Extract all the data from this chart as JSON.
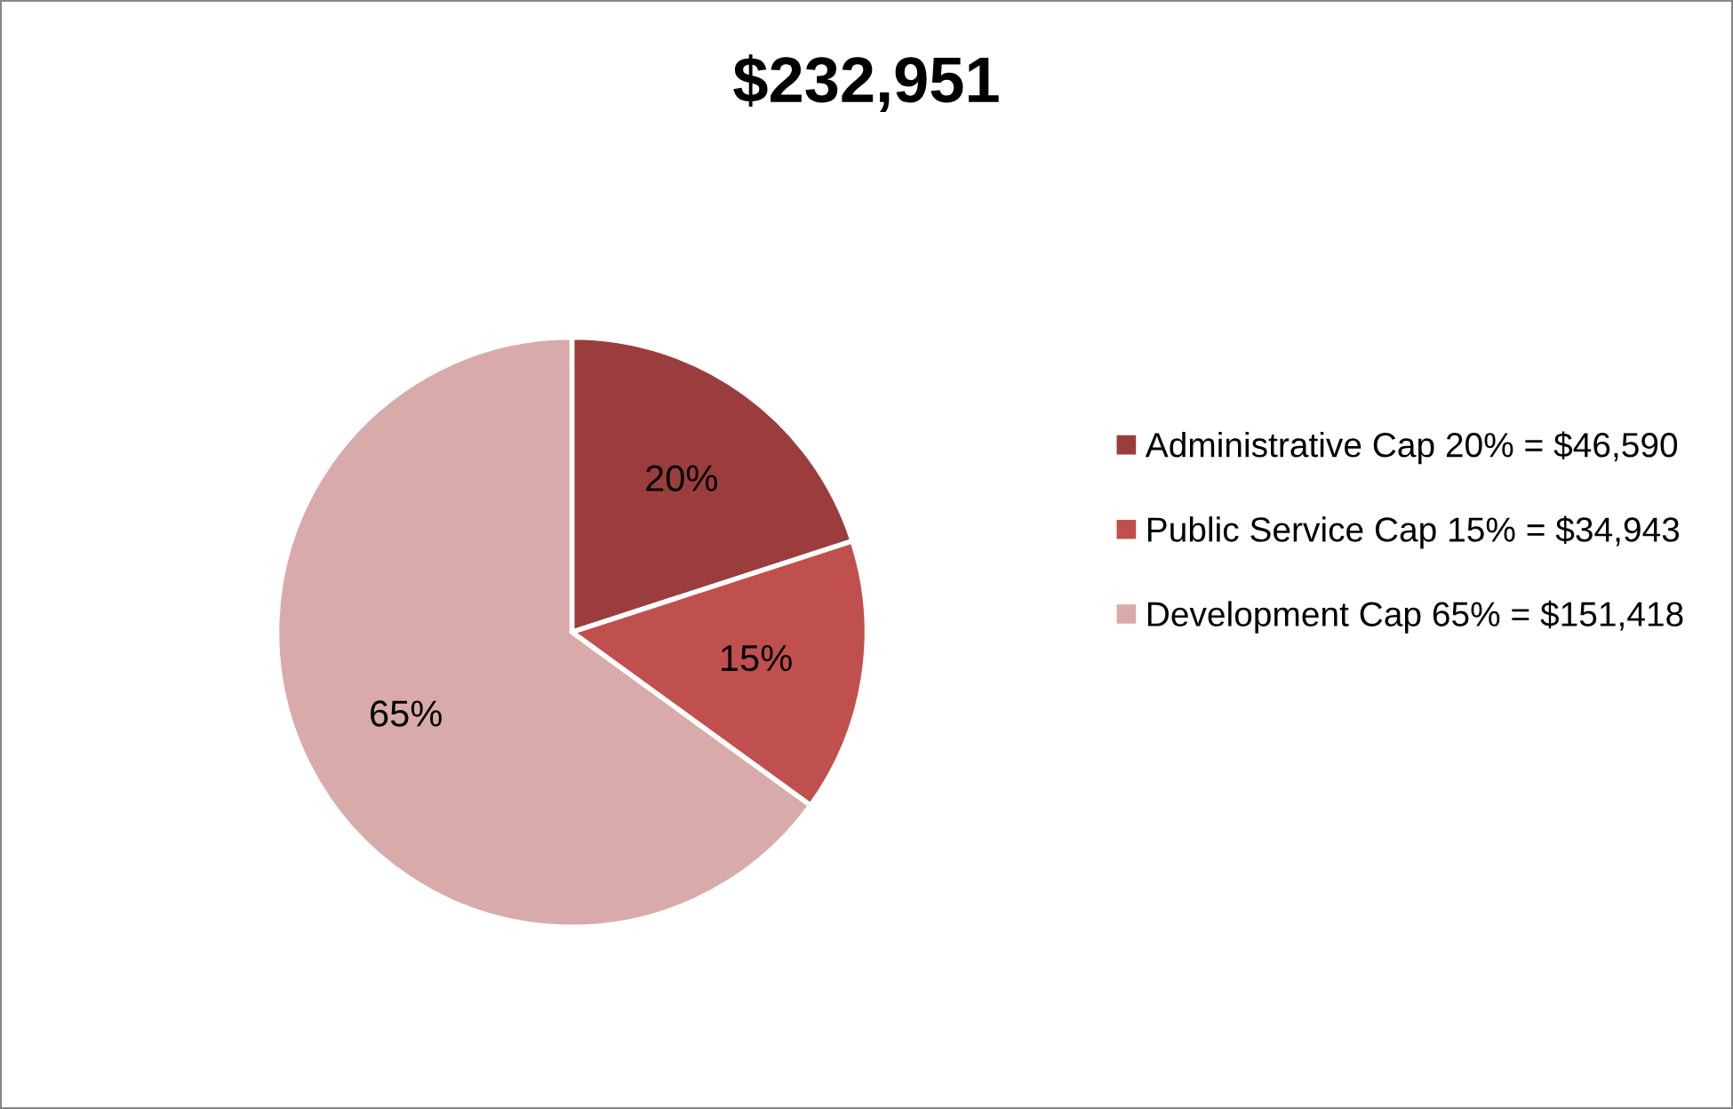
{
  "chart_data": {
    "type": "pie",
    "title": "$232,951",
    "categories": [
      "Administrative Cap 20% = $46,590",
      "Public Service Cap 15% = $34,943",
      "Development Cap 65% = $151,418"
    ],
    "values": [
      20,
      15,
      65
    ],
    "value_labels": [
      "20%",
      "15%",
      "65%"
    ],
    "colors": [
      "#9c3d3d",
      "#c0504d",
      "#d9aaaa"
    ],
    "legend": "right"
  }
}
